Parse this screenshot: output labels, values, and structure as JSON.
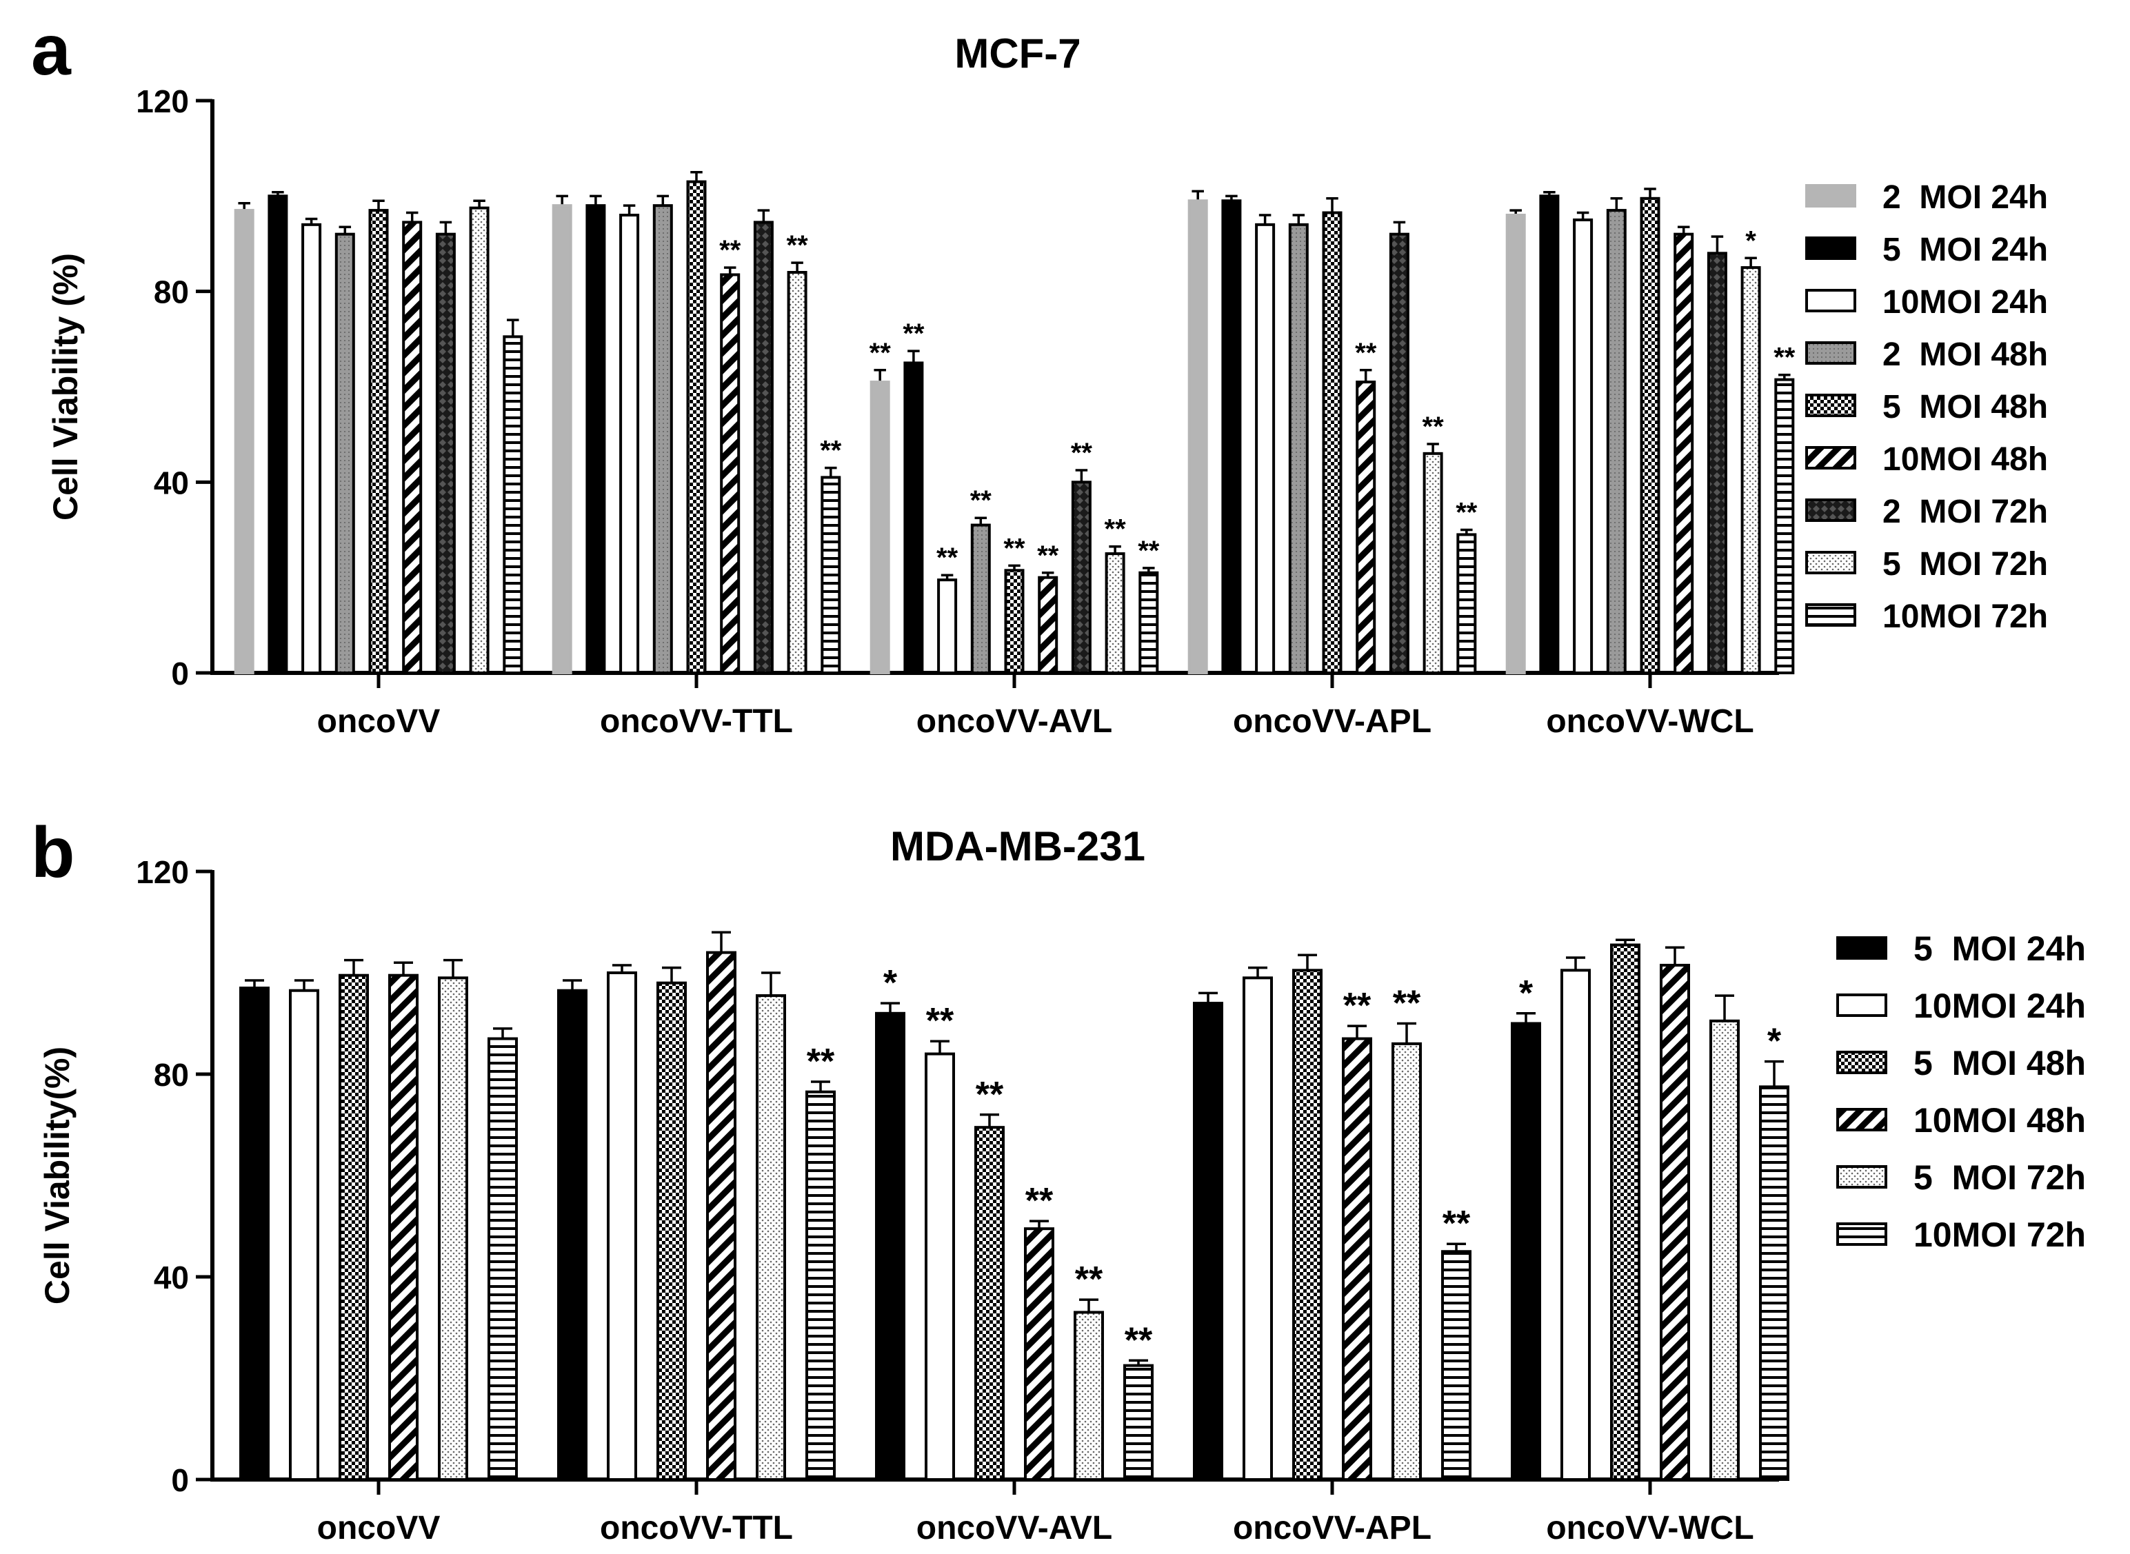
{
  "chart_data": [
    {
      "panel_label": "a",
      "type": "bar",
      "title": "MCF-7",
      "ylabel": "Cell Viability (%)",
      "xlabel": "",
      "ylim": [
        0,
        120
      ],
      "yticks": [
        "0",
        "40",
        "80",
        "120"
      ],
      "categories": [
        "oncoVV",
        "oncoVV-TTL",
        "oncoVV-AVL",
        "oncoVV-APL",
        "oncoVV-WCL"
      ],
      "legend_position": "right",
      "series": [
        {
          "name": "2  MOI 24h",
          "pattern": "gray",
          "values": [
            97,
            98,
            61,
            99,
            96
          ],
          "errors": [
            1.5,
            2,
            2.5,
            2,
            1
          ],
          "sig": [
            "",
            "",
            "**",
            "",
            ""
          ]
        },
        {
          "name": "5  MOI 24h",
          "pattern": "black",
          "values": [
            100,
            98,
            65,
            99,
            100
          ],
          "errors": [
            0.8,
            2,
            2.5,
            1,
            0.8
          ],
          "sig": [
            "",
            "",
            "**",
            "",
            ""
          ]
        },
        {
          "name": "10MOI 24h",
          "pattern": "white",
          "values": [
            94,
            96,
            19.5,
            94,
            95
          ],
          "errors": [
            1.2,
            2,
            1,
            2,
            1.5
          ],
          "sig": [
            "",
            "",
            "**",
            "",
            ""
          ]
        },
        {
          "name": "2  MOI 48h",
          "pattern": "dotgray",
          "values": [
            92,
            98,
            31,
            94,
            97
          ],
          "errors": [
            1.5,
            2,
            1.5,
            2,
            2.5
          ],
          "sig": [
            "",
            "",
            "**",
            "",
            ""
          ]
        },
        {
          "name": "5  MOI 48h",
          "pattern": "check",
          "values": [
            97,
            103,
            21.5,
            96.5,
            99.5
          ],
          "errors": [
            2,
            2,
            1,
            3,
            2
          ],
          "sig": [
            "",
            "",
            "**",
            "",
            ""
          ]
        },
        {
          "name": "10MOI 48h",
          "pattern": "diag",
          "values": [
            94.5,
            83.5,
            20,
            61,
            92
          ],
          "errors": [
            2,
            1.5,
            1,
            2.5,
            1.5
          ],
          "sig": [
            "",
            "**",
            "**",
            "**",
            ""
          ]
        },
        {
          "name": "2  MOI 72h",
          "pattern": "darkdiamond",
          "values": [
            92,
            94.5,
            40,
            92,
            88
          ],
          "errors": [
            2.5,
            2.5,
            2.5,
            2.5,
            3.5
          ],
          "sig": [
            "",
            "",
            "**",
            "",
            ""
          ]
        },
        {
          "name": "5  MOI 72h",
          "pattern": "dots",
          "values": [
            97.5,
            84,
            25,
            46,
            85
          ],
          "errors": [
            1.5,
            2,
            1.5,
            2,
            2
          ],
          "sig": [
            "",
            "**",
            "**",
            "**",
            "*"
          ]
        },
        {
          "name": "10MOI 72h",
          "pattern": "hlines",
          "values": [
            70.5,
            41,
            21,
            29,
            61.5
          ],
          "errors": [
            3.5,
            2,
            1,
            1,
            1
          ],
          "sig": [
            "",
            "**",
            "**",
            "**",
            "**"
          ]
        }
      ]
    },
    {
      "panel_label": "b",
      "type": "bar",
      "title": "MDA-MB-231",
      "ylabel": "Cell Viability(%)",
      "xlabel": "",
      "ylim": [
        0,
        120
      ],
      "yticks": [
        "0",
        "40",
        "80",
        "120"
      ],
      "categories": [
        "oncoVV",
        "oncoVV-TTL",
        "oncoVV-AVL",
        "oncoVV-APL",
        "oncoVV-WCL"
      ],
      "legend_position": "right",
      "series": [
        {
          "name": "5  MOI 24h",
          "pattern": "black",
          "values": [
            97,
            96.5,
            92,
            94,
            90
          ],
          "errors": [
            1.5,
            2,
            2,
            2,
            2
          ],
          "sig": [
            "",
            "",
            "*",
            "",
            "*"
          ]
        },
        {
          "name": "10MOI 24h",
          "pattern": "white",
          "values": [
            96.5,
            100,
            84,
            99,
            100.5
          ],
          "errors": [
            2,
            1.5,
            2.5,
            2,
            2.5
          ],
          "sig": [
            "",
            "",
            "**",
            "",
            ""
          ]
        },
        {
          "name": "5  MOI 48h",
          "pattern": "check",
          "values": [
            99.5,
            98,
            69.5,
            100.5,
            105.5
          ],
          "errors": [
            3,
            3,
            2.5,
            3,
            1
          ],
          "sig": [
            "",
            "",
            "**",
            "",
            ""
          ]
        },
        {
          "name": "10MOI 48h",
          "pattern": "diag",
          "values": [
            99.5,
            104,
            49.5,
            87,
            101.5
          ],
          "errors": [
            2.5,
            4,
            1.5,
            2.5,
            3.5
          ],
          "sig": [
            "",
            "",
            "**",
            "**",
            ""
          ]
        },
        {
          "name": "5  MOI 72h",
          "pattern": "dots",
          "values": [
            99,
            95.5,
            33,
            86,
            90.5
          ],
          "errors": [
            3.5,
            4.5,
            2.5,
            4,
            5
          ],
          "sig": [
            "",
            "",
            "**",
            "**",
            ""
          ]
        },
        {
          "name": "10MOI 72h",
          "pattern": "hlines",
          "values": [
            87,
            76.5,
            22.5,
            45,
            77.5
          ],
          "errors": [
            2,
            2,
            1,
            1.5,
            5
          ],
          "sig": [
            "",
            "**",
            "**",
            "**",
            "*"
          ]
        }
      ]
    }
  ]
}
